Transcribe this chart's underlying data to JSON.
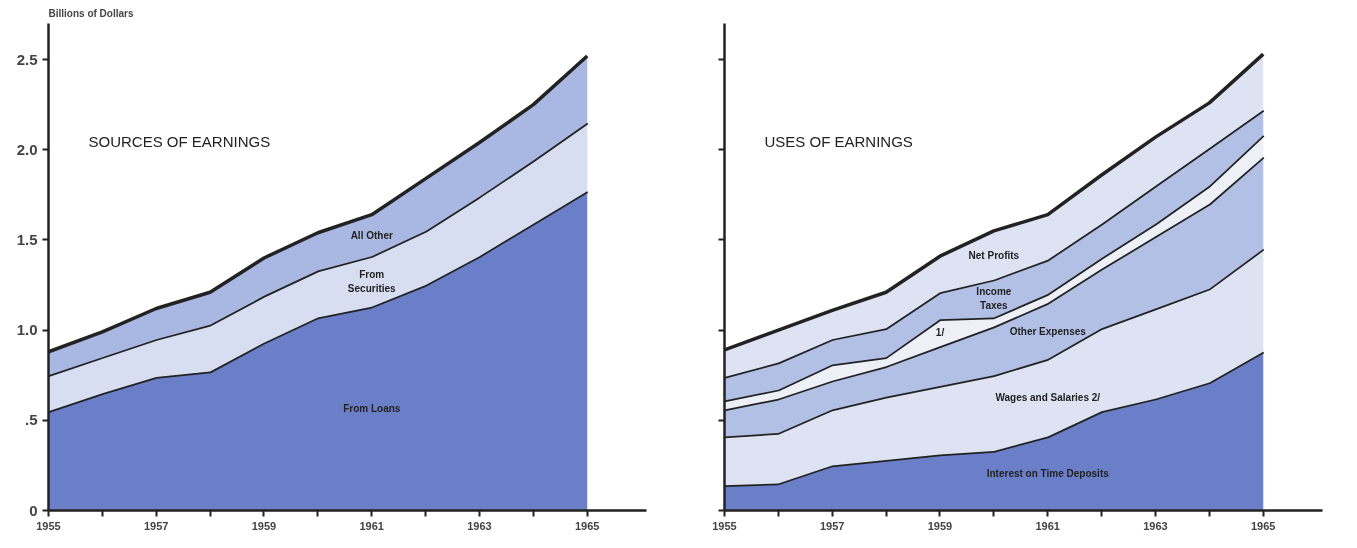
{
  "chart_data": [
    {
      "type": "area",
      "stacked": true,
      "title": "SOURCES OF EARNINGS",
      "ylabel": "Billions of Dollars",
      "x": [
        1955,
        1956,
        1957,
        1958,
        1959,
        1960,
        1961,
        1962,
        1963,
        1964,
        1965
      ],
      "series": [
        {
          "name": "From Loans",
          "color": "#6a7fc8",
          "values": [
            0.55,
            0.65,
            0.74,
            0.77,
            0.93,
            1.07,
            1.13,
            1.25,
            1.41,
            1.59,
            1.77
          ]
        },
        {
          "name": "From\nSecurities",
          "color": "#d8def2",
          "values": [
            0.2,
            0.2,
            0.21,
            0.26,
            0.26,
            0.26,
            0.28,
            0.3,
            0.33,
            0.35,
            0.38
          ]
        },
        {
          "name": "All Other",
          "color": "#a9b8e3",
          "values": [
            0.13,
            0.14,
            0.17,
            0.18,
            0.21,
            0.21,
            0.23,
            0.29,
            0.3,
            0.31,
            0.37
          ]
        }
      ],
      "xlim": [
        1955,
        1966.1
      ],
      "ylim": [
        0,
        2.7
      ],
      "xticks": [
        1955,
        {
          "value": 1956,
          "label": null
        },
        1957,
        {
          "value": 1958,
          "label": null
        },
        1959,
        {
          "value": 1960,
          "label": null
        },
        1961,
        {
          "value": 1962,
          "label": null
        },
        1963,
        {
          "value": 1964,
          "label": null
        },
        1965
      ],
      "yticks": [
        0,
        {
          "value": 0.5,
          "label": ".5"
        },
        {
          "value": 1.0,
          "label": "1.0"
        },
        1.5,
        {
          "value": 2.0,
          "label": "2.0"
        },
        2.5
      ],
      "grid": false,
      "legend": false,
      "line_style": "solid"
    },
    {
      "type": "area",
      "stacked": true,
      "title": "USES OF EARNINGS",
      "x": [
        1955,
        1956,
        1957,
        1958,
        1959,
        1960,
        1961,
        1962,
        1963,
        1964,
        1965
      ],
      "series": [
        {
          "name": "Interest on Time Deposits",
          "color": "#6a7fc8",
          "values": [
            0.14,
            0.15,
            0.25,
            0.28,
            0.31,
            0.33,
            0.41,
            0.55,
            0.62,
            0.71,
            0.88
          ]
        },
        {
          "name": "Wages and Salaries 2/",
          "color": "#dde3f3",
          "values": [
            0.27,
            0.28,
            0.31,
            0.35,
            0.38,
            0.42,
            0.43,
            0.46,
            0.5,
            0.52,
            0.57
          ]
        },
        {
          "name": "Other Expenses",
          "color": "#b3c0e6",
          "values": [
            0.15,
            0.19,
            0.16,
            0.17,
            0.22,
            0.27,
            0.31,
            0.33,
            0.4,
            0.47,
            0.51
          ]
        },
        {
          "name": "1/",
          "color": "#eef0f8",
          "values": [
            0.05,
            0.05,
            0.09,
            0.05,
            0.15,
            0.05,
            0.05,
            0.06,
            0.07,
            0.1,
            0.12
          ]
        },
        {
          "name": "Income\nTaxes",
          "color": "#b3c0e6",
          "values": [
            0.13,
            0.15,
            0.14,
            0.16,
            0.15,
            0.21,
            0.19,
            0.19,
            0.21,
            0.21,
            0.14
          ]
        },
        {
          "name": "Net Profits",
          "color": "#dde3f3",
          "values": [
            0.15,
            0.18,
            0.16,
            0.2,
            0.2,
            0.27,
            0.25,
            0.27,
            0.27,
            0.25,
            0.31
          ]
        }
      ],
      "xlim": [
        1955,
        1966.1
      ],
      "ylim": [
        0,
        2.7
      ],
      "xticks": [
        1955,
        {
          "value": 1956,
          "label": null
        },
        1957,
        {
          "value": 1958,
          "label": null
        },
        1959,
        {
          "value": 1960,
          "label": null
        },
        1961,
        {
          "value": 1962,
          "label": null
        },
        1963,
        {
          "value": 1964,
          "label": null
        },
        1965
      ],
      "yticks": [
        {
          "value": 0,
          "label": null
        },
        {
          "value": 0.5,
          "label": null
        },
        {
          "value": 1.0,
          "label": null
        },
        {
          "value": 1.5,
          "label": null
        },
        {
          "value": 2.0,
          "label": null
        },
        {
          "value": 2.5,
          "label": null
        }
      ],
      "tick_labels": "x",
      "grid": false,
      "legend": false,
      "line_style": "solid"
    }
  ]
}
